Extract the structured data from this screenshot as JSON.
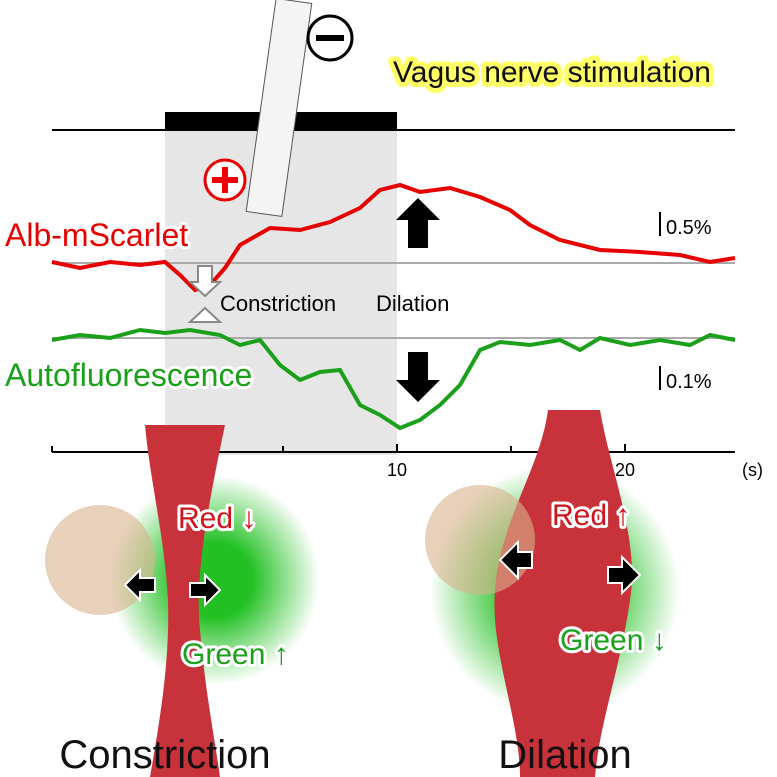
{
  "title": "Vagus nerve stimulation",
  "traces": {
    "red_label": "Alb-mScarlet",
    "green_label": "Autofluorescence",
    "red_scale": "0.5%",
    "green_scale": "0.1%"
  },
  "phases": {
    "constriction": "Constriction",
    "dilation": "Dilation"
  },
  "time_axis": {
    "ticks": [
      "10",
      "20"
    ],
    "unit": "(s)"
  },
  "panels": {
    "left": {
      "red": "Red ↓",
      "green": "Green ↑",
      "caption": "Constriction"
    },
    "right": {
      "red": "Red ↑",
      "green": "Green ↓",
      "caption": "Dilation"
    }
  }
}
